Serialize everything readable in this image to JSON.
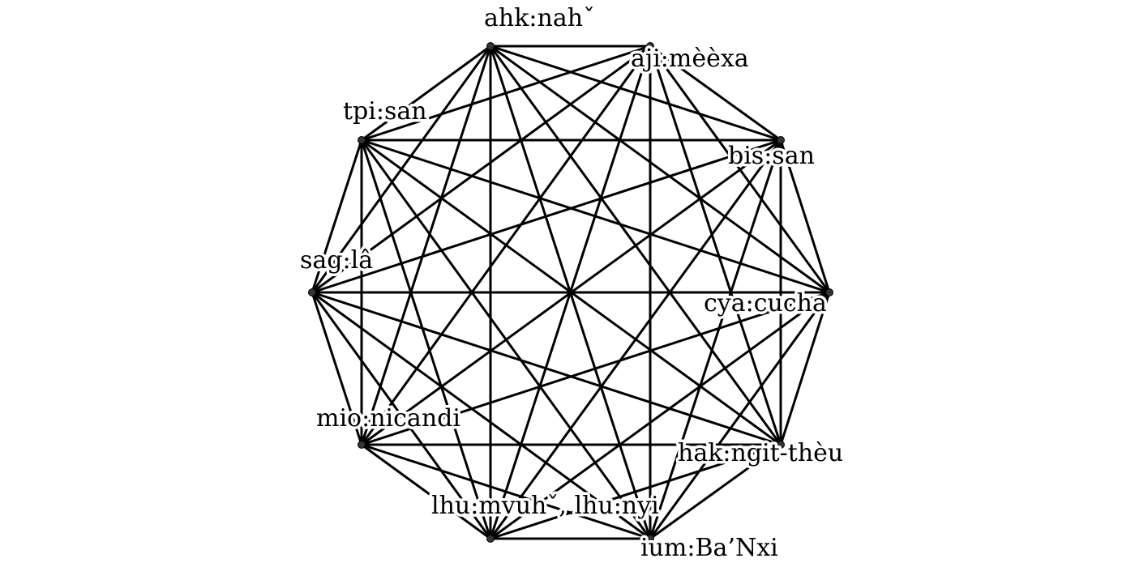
{
  "diagram": {
    "type": "complete-graph",
    "nodes": [
      {
        "id": "n0",
        "label": "ahk:nahˇ"
      },
      {
        "id": "n1",
        "label": "aji:mèèxa"
      },
      {
        "id": "n2",
        "label": "bis:san"
      },
      {
        "id": "n3",
        "label": "cya:cucha"
      },
      {
        "id": "n4",
        "label": "hak:ngit-thèu"
      },
      {
        "id": "n5",
        "label": "ium:Ba’Nxi"
      },
      {
        "id": "n6",
        "label": "lhu:mvuhˇ, lhu:nyi"
      },
      {
        "id": "n7",
        "label": "mio:nicandi"
      },
      {
        "id": "n8",
        "label": "sag:lâ"
      },
      {
        "id": "n9",
        "label": "tpi:san"
      }
    ],
    "edges": "all-pairs",
    "colors": {
      "edge": "#000000",
      "node": "#333333",
      "label": "#000000",
      "background": "#ffffff"
    }
  }
}
